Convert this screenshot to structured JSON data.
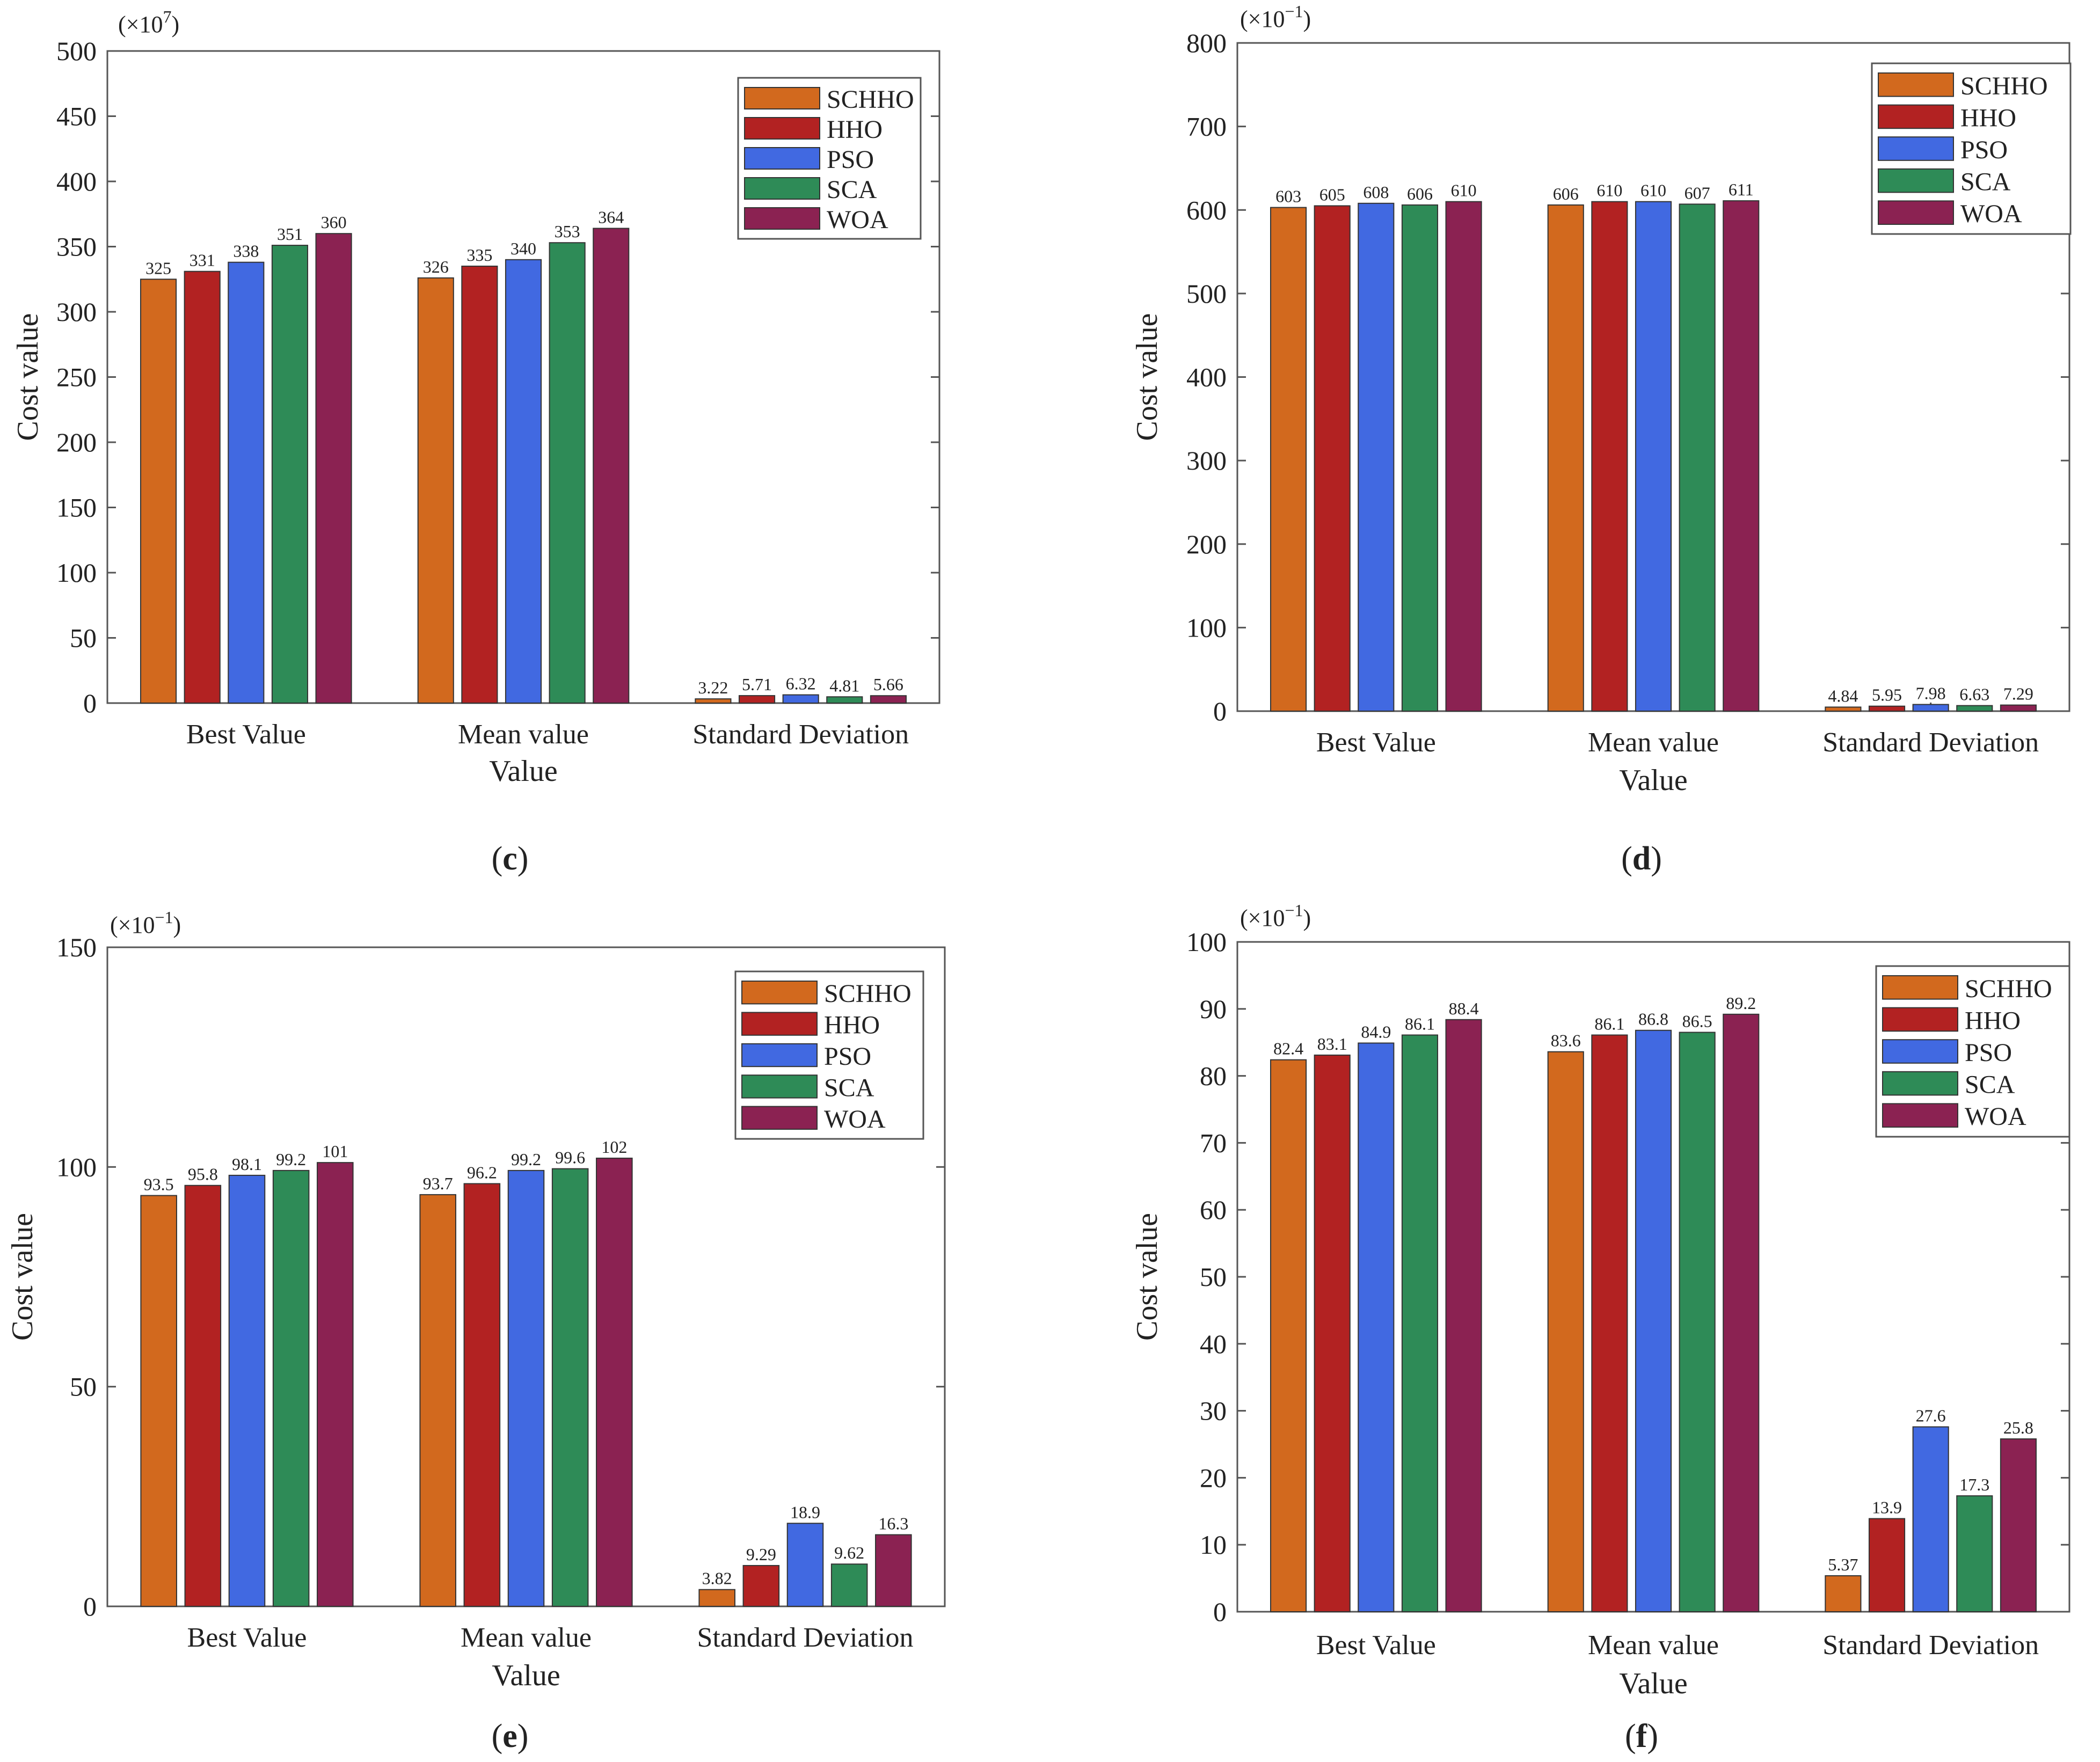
{
  "chart_data": [
    {
      "type": "bar",
      "panel_label": "c",
      "scale_prefix": "(×10",
      "scale_exponent": "7",
      "scale_suffix": ")",
      "categories": [
        "Best Value",
        "Mean value",
        "Standard Deviation"
      ],
      "xlabel": "Value",
      "ylabel": "Cost value",
      "ylim": [
        0,
        500
      ],
      "yticks": [
        0,
        50,
        100,
        150,
        200,
        250,
        300,
        350,
        400,
        450,
        500
      ],
      "legend_position": "top-right",
      "series": [
        {
          "name": "SCHHO",
          "values": [
            325,
            326,
            3.22
          ],
          "labels": [
            "325",
            "326",
            "3.22"
          ]
        },
        {
          "name": "HHO",
          "values": [
            331,
            335,
            5.71
          ],
          "labels": [
            "331",
            "335",
            "5.71"
          ]
        },
        {
          "name": "PSO",
          "values": [
            338,
            340,
            6.32
          ],
          "labels": [
            "338",
            "340",
            "6.32"
          ]
        },
        {
          "name": "SCA",
          "values": [
            351,
            353,
            4.81
          ],
          "labels": [
            "351",
            "353",
            "4.81"
          ]
        },
        {
          "name": "WOA",
          "values": [
            360,
            364,
            5.66
          ],
          "labels": [
            "360",
            "364",
            "5.66"
          ]
        }
      ]
    },
    {
      "type": "bar",
      "panel_label": "d",
      "scale_prefix": "(×10",
      "scale_exponent": "−1",
      "scale_suffix": ")",
      "categories": [
        "Best Value",
        "Mean value",
        "Standard Deviation"
      ],
      "xlabel": "Value",
      "ylabel": "Cost value",
      "ylim": [
        0,
        800
      ],
      "yticks": [
        0,
        100,
        200,
        300,
        400,
        500,
        600,
        700,
        800
      ],
      "legend_position": "top-right",
      "series": [
        {
          "name": "SCHHO",
          "values": [
            603,
            606,
            4.84
          ],
          "labels": [
            "603",
            "606",
            "4.84"
          ]
        },
        {
          "name": "HHO",
          "values": [
            605,
            610,
            5.95
          ],
          "labels": [
            "605",
            "610",
            "5.95"
          ]
        },
        {
          "name": "PSO",
          "values": [
            608,
            610,
            7.98
          ],
          "labels": [
            "608",
            "610",
            "7.98"
          ]
        },
        {
          "name": "SCA",
          "values": [
            606,
            607,
            6.63
          ],
          "labels": [
            "606",
            "607",
            "6.63"
          ]
        },
        {
          "name": "WOA",
          "values": [
            610,
            611,
            7.29
          ],
          "labels": [
            "610",
            "611",
            "7.29"
          ]
        }
      ]
    },
    {
      "type": "bar",
      "panel_label": "e",
      "scale_prefix": "(×10",
      "scale_exponent": "−1",
      "scale_suffix": ")",
      "categories": [
        "Best Value",
        "Mean value",
        "Standard Deviation"
      ],
      "xlabel": "Value",
      "ylabel": "Cost value",
      "ylim": [
        0,
        150
      ],
      "yticks": [
        0,
        50,
        100,
        150
      ],
      "legend_position": "top-right",
      "series": [
        {
          "name": "SCHHO",
          "values": [
            93.5,
            93.7,
            3.82
          ],
          "labels": [
            "93.5",
            "93.7",
            "3.82"
          ]
        },
        {
          "name": "HHO",
          "values": [
            95.8,
            96.2,
            9.29
          ],
          "labels": [
            "95.8",
            "96.2",
            "9.29"
          ]
        },
        {
          "name": "PSO",
          "values": [
            98.1,
            99.2,
            18.9
          ],
          "labels": [
            "98.1",
            "99.2",
            "18.9"
          ]
        },
        {
          "name": "SCA",
          "values": [
            99.2,
            99.6,
            9.62
          ],
          "labels": [
            "99.2",
            "99.6",
            "9.62"
          ]
        },
        {
          "name": "WOA",
          "values": [
            101,
            102,
            16.3
          ],
          "labels": [
            "101",
            "102",
            "16.3"
          ]
        }
      ]
    },
    {
      "type": "bar",
      "panel_label": "f",
      "scale_prefix": "(×10",
      "scale_exponent": "−1",
      "scale_suffix": ")",
      "categories": [
        "Best Value",
        "Mean value",
        "Standard Deviation"
      ],
      "xlabel": "Value",
      "ylabel": "Cost value",
      "ylim": [
        0,
        100
      ],
      "yticks": [
        0,
        10,
        20,
        30,
        40,
        50,
        60,
        70,
        80,
        90,
        100
      ],
      "legend_position": "top-right",
      "series": [
        {
          "name": "SCHHO",
          "values": [
            82.4,
            83.6,
            5.37
          ],
          "labels": [
            "82.4",
            "83.6",
            "5.37"
          ]
        },
        {
          "name": "HHO",
          "values": [
            83.1,
            86.1,
            13.9
          ],
          "labels": [
            "83.1",
            "86.1",
            "13.9"
          ]
        },
        {
          "name": "PSO",
          "values": [
            84.9,
            86.8,
            27.6
          ],
          "labels": [
            "84.9",
            "86.8",
            "27.6"
          ]
        },
        {
          "name": "SCA",
          "values": [
            86.1,
            86.5,
            17.3
          ],
          "labels": [
            "86.1",
            "86.5",
            "17.3"
          ]
        },
        {
          "name": "WOA",
          "values": [
            88.4,
            89.2,
            25.8
          ],
          "labels": [
            "88.4",
            "89.2",
            "25.8"
          ]
        }
      ]
    }
  ],
  "colors": {
    "SCHHO": "#D2691E",
    "HHO": "#B22222",
    "PSO": "#4169E1",
    "SCA": "#2E8B57",
    "WOA": "#8B2252"
  }
}
